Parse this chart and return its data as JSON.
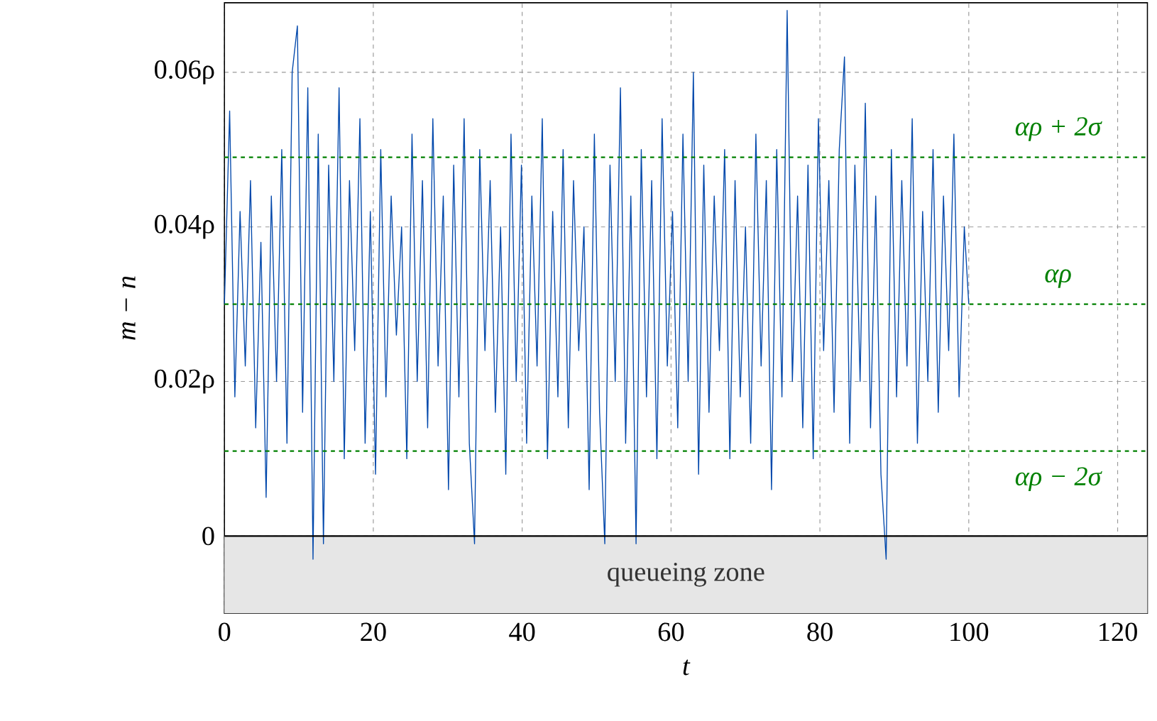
{
  "chart_data": {
    "type": "line",
    "xlabel": "t",
    "ylabel": "m − n",
    "xlim": [
      0,
      124
    ],
    "ylim": [
      -0.01,
      0.069
    ],
    "xticks": [
      0,
      20,
      40,
      60,
      80,
      100,
      120
    ],
    "yticks": [
      0,
      {
        "value": 0.02,
        "label": "0.02ρ"
      },
      {
        "value": 0.04,
        "label": "0.04ρ"
      },
      {
        "value": 0.06,
        "label": "0.06ρ"
      }
    ],
    "grid": true,
    "line_style": "solid",
    "marker": "none",
    "series": [
      {
        "color": "#0047ab",
        "x": [
          0,
          0.7,
          1.4,
          2.1,
          2.8,
          3.5,
          4.2,
          4.9,
          5.6,
          6.3,
          7,
          7.7,
          8.4,
          9.1,
          9.8,
          10.5,
          11.2,
          11.9,
          12.6,
          13.3,
          14,
          14.7,
          15.4,
          16.1,
          16.8,
          17.5,
          18.2,
          18.9,
          19.6,
          20.3,
          21,
          21.7,
          22.4,
          23.1,
          23.8,
          24.5,
          25.2,
          25.9,
          26.6,
          27.3,
          28,
          28.7,
          29.4,
          30.1,
          30.8,
          31.5,
          32.2,
          32.9,
          33.6,
          34.3,
          35,
          35.7,
          36.4,
          37.1,
          37.8,
          38.5,
          39.2,
          39.9,
          40.6,
          41.3,
          42,
          42.7,
          43.4,
          44.1,
          44.8,
          45.5,
          46.2,
          46.9,
          47.6,
          48.3,
          49,
          49.7,
          50.4,
          51.1,
          51.8,
          52.5,
          53.2,
          53.9,
          54.6,
          55.3,
          56,
          56.7,
          57.4,
          58.1,
          58.8,
          59.5,
          60.2,
          60.9,
          61.6,
          62.3,
          63,
          63.7,
          64.4,
          65.1,
          65.8,
          66.5,
          67.2,
          67.9,
          68.6,
          69.3,
          70,
          70.7,
          71.4,
          72.1,
          72.8,
          73.5,
          74.2,
          74.9,
          75.6,
          76.3,
          77,
          77.7,
          78.4,
          79.1,
          79.8,
          80.5,
          81.2,
          81.9,
          82.6,
          83.3,
          84,
          84.7,
          85.4,
          86.1,
          86.8,
          87.5,
          88.2,
          88.9,
          89.6,
          90.3,
          91,
          91.7,
          92.4,
          93.1,
          93.8,
          94.5,
          95.2,
          95.9,
          96.6,
          97.3,
          98,
          98.7,
          99.4,
          100
        ],
        "values": [
          0.03,
          0.055,
          0.018,
          0.042,
          0.022,
          0.046,
          0.014,
          0.038,
          0.005,
          0.044,
          0.02,
          0.05,
          0.012,
          0.06,
          0.066,
          0.016,
          0.058,
          -0.003,
          0.052,
          -0.001,
          0.048,
          0.02,
          0.058,
          0.01,
          0.046,
          0.024,
          0.054,
          0.012,
          0.042,
          0.008,
          0.05,
          0.018,
          0.044,
          0.026,
          0.04,
          0.01,
          0.052,
          0.02,
          0.046,
          0.014,
          0.054,
          0.022,
          0.044,
          0.006,
          0.048,
          0.018,
          0.054,
          0.012,
          -0.001,
          0.05,
          0.024,
          0.046,
          0.016,
          0.04,
          0.008,
          0.052,
          0.02,
          0.048,
          0.012,
          0.044,
          0.022,
          0.054,
          0.01,
          0.042,
          0.018,
          0.05,
          0.014,
          0.046,
          0.024,
          0.04,
          0.006,
          0.052,
          0.016,
          -0.001,
          0.048,
          0.02,
          0.058,
          0.012,
          0.044,
          -0.001,
          0.05,
          0.018,
          0.046,
          0.01,
          0.054,
          0.022,
          0.042,
          0.014,
          0.052,
          0.02,
          0.06,
          0.008,
          0.048,
          0.016,
          0.044,
          0.024,
          0.05,
          0.01,
          0.046,
          0.018,
          0.04,
          0.012,
          0.052,
          0.022,
          0.046,
          0.006,
          0.05,
          0.018,
          0.068,
          0.02,
          0.044,
          0.014,
          0.048,
          0.01,
          0.054,
          0.024,
          0.046,
          0.016,
          0.05,
          0.062,
          0.012,
          0.048,
          0.02,
          0.056,
          0.014,
          0.044,
          0.008,
          -0.003,
          0.05,
          0.018,
          0.046,
          0.022,
          0.054,
          0.012,
          0.042,
          0.02,
          0.05,
          0.016,
          0.044,
          0.024,
          0.052,
          0.018,
          0.04,
          0.03
        ]
      }
    ],
    "ref_lines": [
      {
        "axis": "y",
        "value": 0.049,
        "label": "αρ + 2σ",
        "color": "#008000",
        "line_style": "dashed"
      },
      {
        "axis": "y",
        "value": 0.03,
        "label": "αρ",
        "color": "#008000",
        "line_style": "dashed"
      },
      {
        "axis": "y",
        "value": 0.011,
        "label": "αρ − 2σ",
        "color": "#008000",
        "line_style": "dashed"
      },
      {
        "axis": "y",
        "value": 0,
        "color": "#000000",
        "line_style": "solid"
      }
    ],
    "bands": [
      {
        "axis": "y",
        "from": -0.01,
        "to": 0,
        "label": "queueing zone",
        "color": "#e6e6e6"
      }
    ]
  }
}
